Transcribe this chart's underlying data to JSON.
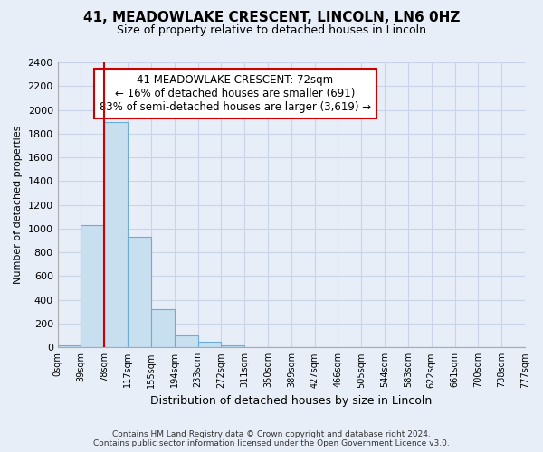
{
  "title": "41, MEADOWLAKE CRESCENT, LINCOLN, LN6 0HZ",
  "subtitle": "Size of property relative to detached houses in Lincoln",
  "xlabel": "Distribution of detached houses by size in Lincoln",
  "ylabel": "Number of detached properties",
  "bar_values": [
    20,
    1030,
    1900,
    930,
    320,
    105,
    50,
    20,
    0,
    0,
    0,
    0,
    0,
    0,
    0,
    0,
    0,
    0,
    0,
    0
  ],
  "bin_labels": [
    "0sqm",
    "39sqm",
    "78sqm",
    "117sqm",
    "155sqm",
    "194sqm",
    "233sqm",
    "272sqm",
    "311sqm",
    "350sqm",
    "389sqm",
    "427sqm",
    "466sqm",
    "505sqm",
    "544sqm",
    "583sqm",
    "622sqm",
    "661sqm",
    "700sqm",
    "738sqm",
    "777sqm"
  ],
  "bar_color": "#c8dff0",
  "bar_edge_color": "#6aaed6",
  "vline_color": "#cc0000",
  "annotation_text_line1": "41 MEADOWLAKE CRESCENT: 72sqm",
  "annotation_text_line2": "← 16% of detached houses are smaller (691)",
  "annotation_text_line3": "83% of semi-detached houses are larger (3,619) →",
  "ylim": [
    0,
    2400
  ],
  "yticks": [
    0,
    200,
    400,
    600,
    800,
    1000,
    1200,
    1400,
    1600,
    1800,
    2000,
    2200,
    2400
  ],
  "footer_line1": "Contains HM Land Registry data © Crown copyright and database right 2024.",
  "footer_line2": "Contains public sector information licensed under the Open Government Licence v3.0.",
  "background_color": "#e8eef8",
  "plot_bg_color": "#e8eef8",
  "grid_color": "#c8d4e8"
}
